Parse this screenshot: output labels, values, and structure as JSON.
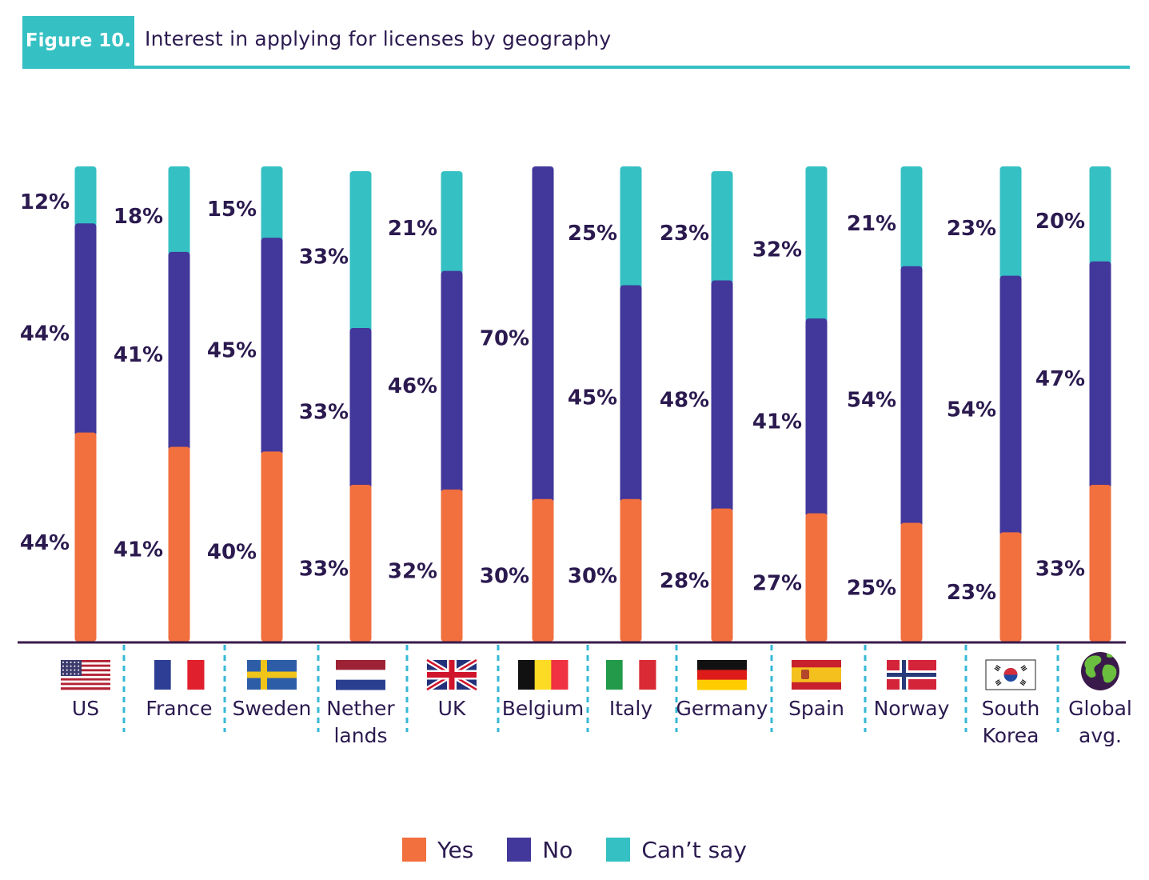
{
  "figure": {
    "badge": "Figure 10.",
    "title": "Interest in applying for licenses by geography"
  },
  "colors": {
    "yes": "#f26f3e",
    "no": "#42379a",
    "cant_say": "#35c0c3",
    "axis": "#3a1a4a",
    "divider": "#35b8d6",
    "label": "#2b1a4f"
  },
  "legend": {
    "yes": "Yes",
    "no": "No",
    "cant_say": "Can’t say"
  },
  "chart_data": {
    "type": "bar",
    "stacked": true,
    "categories": [
      {
        "lines": [
          "US"
        ],
        "flag": "us-flag-icon"
      },
      {
        "lines": [
          "France"
        ],
        "flag": "france-flag-icon"
      },
      {
        "lines": [
          "Sweden"
        ],
        "flag": "sweden-flag-icon"
      },
      {
        "lines": [
          "Nether",
          "lands"
        ],
        "flag": "netherlands-flag-icon"
      },
      {
        "lines": [
          "UK"
        ],
        "flag": "uk-flag-icon"
      },
      {
        "lines": [
          "Belgium"
        ],
        "flag": "belgium-flag-icon"
      },
      {
        "lines": [
          "Italy"
        ],
        "flag": "italy-flag-icon"
      },
      {
        "lines": [
          "Germany"
        ],
        "flag": "germany-flag-icon"
      },
      {
        "lines": [
          "Spain"
        ],
        "flag": "spain-flag-icon"
      },
      {
        "lines": [
          "Norway"
        ],
        "flag": "norway-flag-icon"
      },
      {
        "lines": [
          "South",
          "Korea"
        ],
        "flag": "south-korea-flag-icon"
      },
      {
        "lines": [
          "Global",
          "avg."
        ],
        "flag": "globe-icon"
      }
    ],
    "series": [
      {
        "name": "Yes",
        "color_key": "yes",
        "values": [
          44,
          41,
          40,
          33,
          32,
          30,
          30,
          28,
          27,
          25,
          23,
          33
        ]
      },
      {
        "name": "No",
        "color_key": "no",
        "values": [
          44,
          41,
          45,
          33,
          46,
          70,
          45,
          48,
          41,
          54,
          54,
          47
        ]
      },
      {
        "name": "Can’t say",
        "color_key": "cant_say",
        "values": [
          12,
          18,
          15,
          33,
          21,
          null,
          25,
          23,
          32,
          21,
          23,
          20
        ]
      }
    ],
    "data_labels": {
      "yes": [
        "44%",
        "41%",
        "40%",
        "33%",
        "32%",
        "30%",
        "30%",
        "28%",
        "27%",
        "25%",
        "23%",
        "33%"
      ],
      "no": [
        "44%",
        "41%",
        "45%",
        "33%",
        "46%",
        "70%",
        "45%",
        "48%",
        "41%",
        "54%",
        "54%",
        "47%"
      ],
      "cant_say": [
        "12%",
        "18%",
        "15%",
        "33%",
        "21%",
        null,
        "25%",
        "23%",
        "32%",
        "21%",
        "23%",
        "20%"
      ]
    },
    "ylim": [
      0,
      100
    ],
    "grid": false,
    "legend_position": "bottom-center"
  }
}
